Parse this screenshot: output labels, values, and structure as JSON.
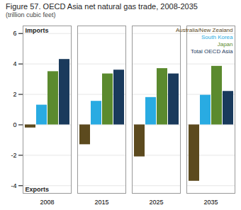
{
  "chart_data": {
    "type": "bar",
    "title": "Figure 57. OECD Asia net natural gas trade, 2008-2035",
    "subtitle": "(trillion cubic feet)",
    "categories": [
      "2008",
      "2015",
      "2025",
      "2035"
    ],
    "series": [
      {
        "name": "Australia/New Zealand",
        "color": "#5c4a1e",
        "values": [
          -0.2,
          -1.3,
          -2.1,
          -3.7
        ]
      },
      {
        "name": "South Korea",
        "color": "#29abe2",
        "values": [
          1.3,
          1.55,
          1.8,
          1.95
        ]
      },
      {
        "name": "Japan",
        "color": "#5b8a2e",
        "values": [
          3.5,
          3.35,
          3.7,
          3.85
        ]
      },
      {
        "name": "Total OECD Asia",
        "color": "#1a3a5c",
        "values": [
          4.3,
          3.6,
          3.35,
          2.2
        ]
      }
    ],
    "ylim": [
      -4.5,
      6.5
    ],
    "yticks": [
      -4,
      -2,
      0,
      2,
      4,
      6
    ],
    "grid": true,
    "annotations": [
      "Imports",
      "Exports"
    ]
  }
}
